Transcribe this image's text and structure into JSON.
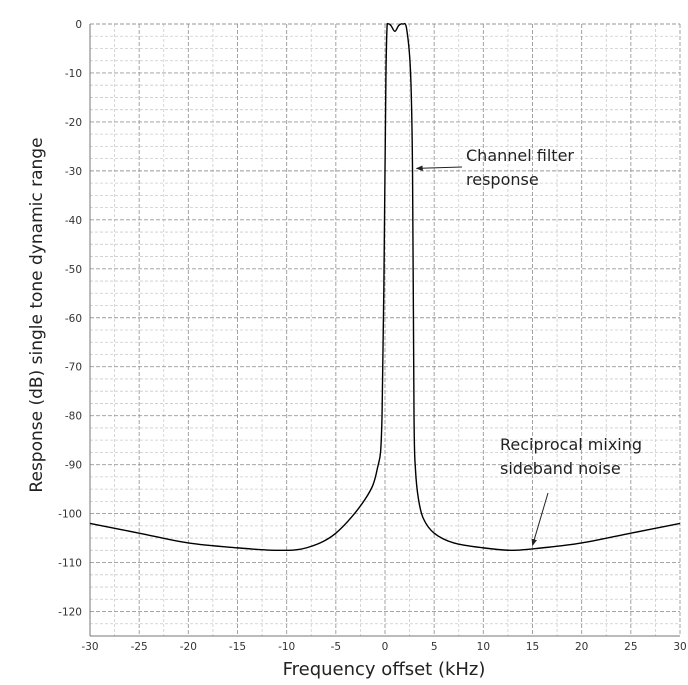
{
  "chart_data": {
    "type": "line",
    "title": "",
    "xlabel": "Frequency offset (kHz)",
    "ylabel": "Response (dB) single tone dynamic range",
    "xlim": [
      -30,
      30
    ],
    "ylim": [
      -125,
      0
    ],
    "xticks": [
      -30,
      -25,
      -20,
      -15,
      -10,
      -5,
      0,
      5,
      10,
      15,
      20,
      25,
      30
    ],
    "yticks": [
      0,
      -10,
      -20,
      -30,
      -40,
      -50,
      -60,
      -70,
      -80,
      -90,
      -100,
      -110,
      -120
    ],
    "grid": true,
    "series": [
      {
        "values_x": [
          -30,
          -25,
          -20,
          -15,
          -11,
          -8,
          -5,
          -2,
          -0.8,
          -0.3,
          0,
          0.1,
          0.2,
          0.3,
          0.6,
          1.0,
          1.4,
          1.8,
          2.2,
          2.6,
          2.8,
          2.95,
          3.1,
          3.4,
          3.9,
          5,
          7,
          10,
          13,
          16,
          20,
          25,
          30
        ],
        "values_y": [
          -102,
          -104,
          -106,
          -107,
          -107.5,
          -107,
          -104,
          -97,
          -91,
          -80,
          -30,
          -10,
          -1,
          0,
          -0.3,
          -1.5,
          -0.3,
          0,
          -1,
          -10,
          -30,
          -80,
          -91,
          -97,
          -101,
          -104,
          -106,
          -107,
          -107.5,
          -107,
          -106,
          -104,
          -102
        ],
        "color": "#000000"
      }
    ],
    "annotations": [
      {
        "lines": [
          "Channel filter",
          "response"
        ],
        "arrow_target": {
          "x": 3.2,
          "y": -29.5
        }
      },
      {
        "lines": [
          "Reciprocal mixing",
          "sideband noise"
        ],
        "arrow_target": {
          "x": 15.0,
          "y": -106.5
        }
      }
    ]
  },
  "colors": {
    "grid_major": "#999999",
    "grid_minor": "#cccccc",
    "curve": "#000000"
  }
}
